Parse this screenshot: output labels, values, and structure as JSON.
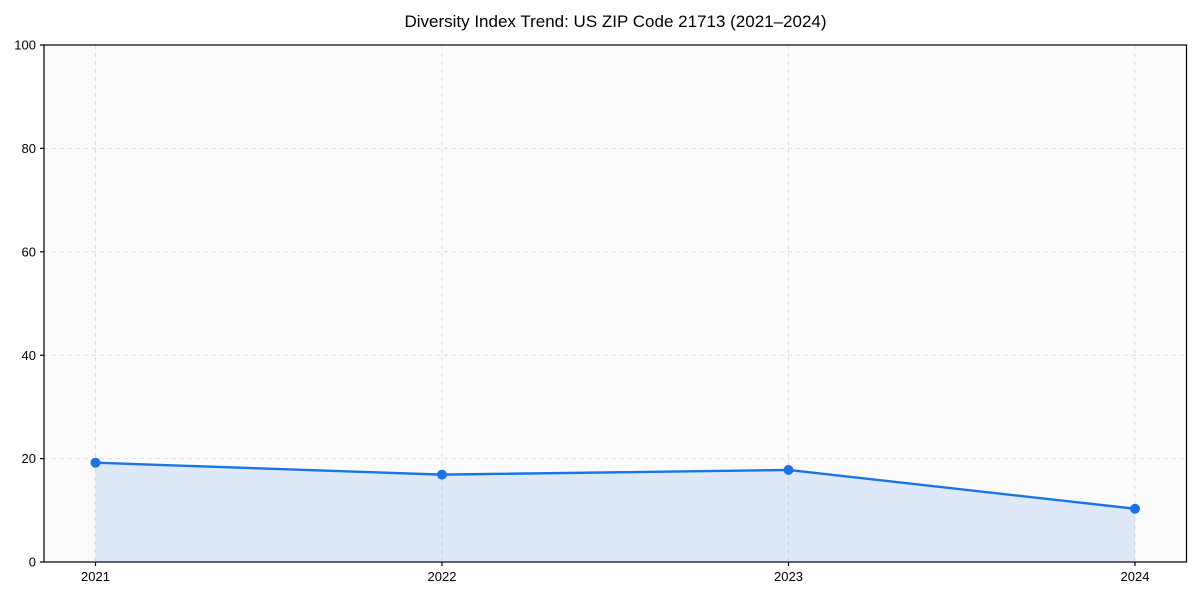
{
  "title": "Diversity Index Trend: US ZIP Code 21713 (2021–2024)",
  "chart_data": {
    "type": "line",
    "title": "Diversity Index Trend: US ZIP Code 21713 (2021–2024)",
    "categories": [
      "2021",
      "2022",
      "2023",
      "2024"
    ],
    "series": [
      {
        "name": "Diversity Index",
        "values": [
          19.2,
          16.9,
          17.8,
          10.3
        ]
      }
    ],
    "xlabel": "",
    "ylabel": "",
    "ylim": [
      0,
      100
    ],
    "yticks": [
      0,
      20,
      40,
      60,
      80,
      100
    ],
    "grid": true,
    "grid_style": "dashed",
    "area_fill": true,
    "legend": "none",
    "colors": {
      "line": "#1a73e8",
      "marker": "#1a73e8",
      "fill": "#1a73e8",
      "fill_opacity": 0.13,
      "grid": "#e0e0e0",
      "spine": "#000000",
      "plot_background": "#fbfbfb",
      "figure_background": "#ffffff"
    }
  }
}
